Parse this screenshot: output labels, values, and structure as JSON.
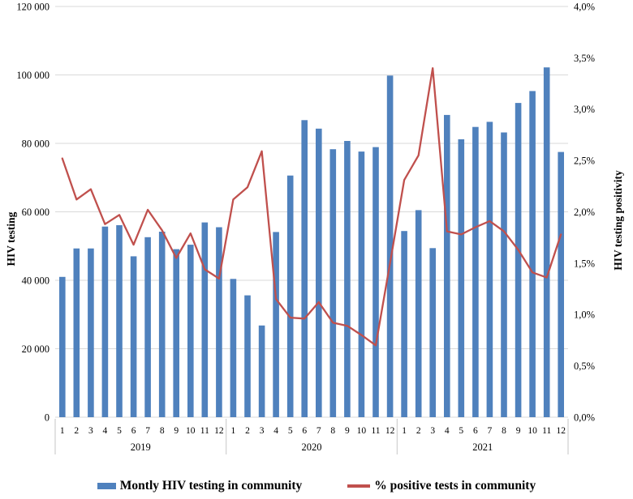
{
  "chart_data": {
    "type": "bar+line-combo",
    "title": "",
    "categories_years": [
      "2019",
      "2020",
      "2021"
    ],
    "month_labels": [
      "1",
      "2",
      "3",
      "4",
      "5",
      "6",
      "7",
      "8",
      "9",
      "10",
      "11",
      "12"
    ],
    "series": [
      {
        "name": "Montly HIV testing in community",
        "type": "bar",
        "yaxis": "left",
        "color": "#4f81bd",
        "values": [
          41000,
          49300,
          49300,
          55700,
          56100,
          47000,
          52600,
          54200,
          49100,
          50400,
          56900,
          55500,
          40400,
          35600,
          26800,
          54100,
          70600,
          86800,
          84300,
          78300,
          80700,
          77600,
          78900,
          99800,
          54400,
          60500,
          49400,
          88300,
          81200,
          84800,
          86300,
          83200,
          91800,
          95300,
          102200,
          77500
        ]
      },
      {
        "name": "% positive tests in community",
        "type": "line",
        "yaxis": "right",
        "color": "#c0504d",
        "values_percent": [
          2.52,
          2.12,
          2.22,
          1.88,
          1.97,
          1.68,
          2.02,
          1.82,
          1.55,
          1.79,
          1.44,
          1.35,
          2.12,
          2.24,
          2.59,
          1.15,
          0.97,
          0.96,
          1.12,
          0.92,
          0.89,
          0.8,
          0.7,
          1.5,
          2.31,
          2.55,
          3.4,
          1.81,
          1.78,
          1.85,
          1.91,
          1.81,
          1.63,
          1.41,
          1.36,
          1.78
        ]
      }
    ],
    "left_axis": {
      "title": "HIV testing",
      "min": 0,
      "max": 120000,
      "tick_labels": [
        "0",
        "20 000",
        "40 000",
        "60 000",
        "80 000",
        "100 000",
        "120 000"
      ]
    },
    "right_axis": {
      "title": "HIV testing positivity",
      "min": 0,
      "max": 4,
      "tick_labels": [
        "0,0%",
        "0,5%",
        "1,0%",
        "1,5%",
        "2,0%",
        "2,5%",
        "3,0%",
        "3,5%",
        "4,0%"
      ]
    },
    "grid": true,
    "legend_position": "bottom",
    "colors": {
      "gridline": "#d9d9d9",
      "axis_line": "#d9d9d9",
      "year_separator": "#c6c6c6"
    }
  },
  "legend": {
    "bar_label": "Montly HIV testing in community",
    "line_label": "% positive tests in community"
  },
  "axis_titles": {
    "left": "HIV testing",
    "right": "HIV testing positivity"
  }
}
